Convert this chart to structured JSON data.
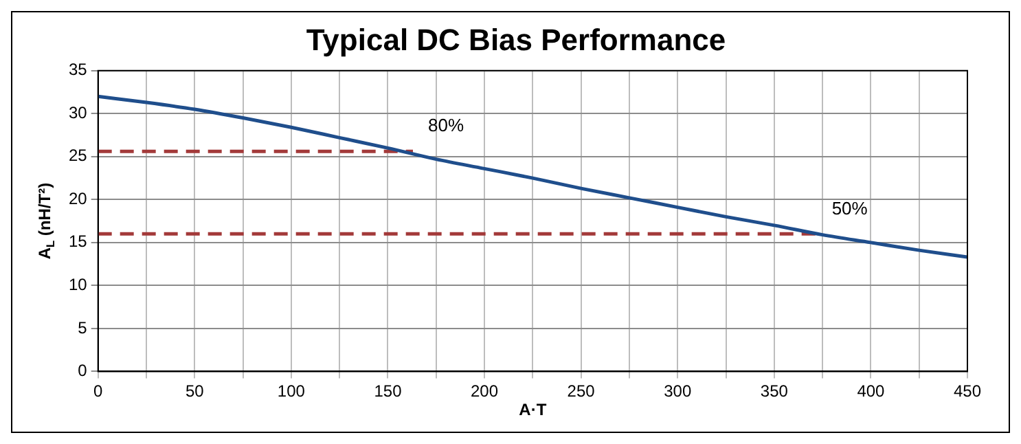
{
  "chart_data": {
    "type": "line",
    "title": "Typical DC Bias Performance",
    "xlabel": "A·T",
    "ylabel": "A$_{L}$ (nH/T²)",
    "series": [
      {
        "color": "#1f4e8c",
        "line_style": "solid",
        "x": [
          0,
          25,
          50,
          75,
          100,
          125,
          150,
          175,
          200,
          225,
          250,
          275,
          300,
          325,
          350,
          375,
          400,
          425,
          450
        ],
        "values": [
          32,
          31.3,
          30.5,
          29.5,
          28.4,
          27.2,
          26,
          24.7,
          23.6,
          22.5,
          21.3,
          20.2,
          19.1,
          18,
          17,
          15.9,
          15,
          14.1,
          13.3
        ]
      },
      {
        "color": "#a33a3a",
        "line_style": "dashed",
        "x": [
          0,
          163
        ],
        "values": [
          25.6,
          25.6
        ]
      },
      {
        "color": "#a33a3a",
        "line_style": "dashed",
        "x": [
          0,
          372
        ],
        "values": [
          16,
          16
        ]
      }
    ],
    "annotations": [
      {
        "text": "80%",
        "x": 163,
        "y": 25.6
      },
      {
        "text": "50%",
        "x": 372,
        "y": 16
      }
    ],
    "xlim": [
      0,
      450
    ],
    "xticks": [
      0,
      {
        "value": 25,
        "label": null
      },
      50,
      {
        "value": 75,
        "label": null
      },
      100,
      {
        "value": 125,
        "label": null
      },
      150,
      {
        "value": 175,
        "label": null
      },
      200,
      {
        "value": 225,
        "label": null
      },
      250,
      {
        "value": 275,
        "label": null
      },
      300,
      {
        "value": 325,
        "label": null
      },
      350,
      {
        "value": 375,
        "label": null
      },
      400,
      {
        "value": 425,
        "label": null
      },
      450
    ],
    "ylim": [
      0,
      35
    ],
    "yticks": [
      0,
      5,
      10,
      15,
      20,
      25,
      30,
      35
    ],
    "grid": true,
    "legend": false,
    "marker": "none"
  }
}
